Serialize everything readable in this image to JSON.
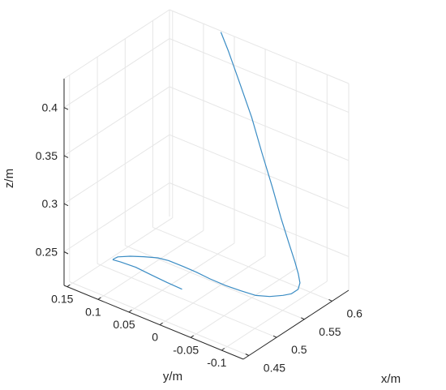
{
  "chart_data": {
    "type": "line",
    "view": "3d",
    "grid": true,
    "axes": {
      "x": {
        "label": "x/m",
        "range": [
          0.44,
          0.63
        ],
        "ticks": [
          "0.45",
          "0.5",
          "0.55",
          "0.6"
        ],
        "tick_values": [
          0.45,
          0.5,
          0.55,
          0.6
        ]
      },
      "y": {
        "label": "y/m",
        "range": [
          -0.135,
          0.155
        ],
        "ticks": [
          "0.15",
          "0.1",
          "0.05",
          "0",
          "-0.05",
          "-0.1"
        ],
        "tick_values": [
          0.15,
          0.1,
          0.05,
          0,
          -0.05,
          -0.1
        ]
      },
      "z": {
        "label": "z/m",
        "range": [
          0.215,
          0.43
        ],
        "ticks": [
          "0.25",
          "0.3",
          "0.35",
          "0.4"
        ],
        "tick_values": [
          0.25,
          0.3,
          0.35,
          0.4
        ]
      }
    },
    "series": [
      {
        "color": "#3a8cc4",
        "points": [
          {
            "x": 0.48,
            "y": 0.0,
            "z": 0.237
          },
          {
            "x": 0.481,
            "y": 0.025,
            "z": 0.237
          },
          {
            "x": 0.481,
            "y": 0.05,
            "z": 0.238
          },
          {
            "x": 0.48,
            "y": 0.075,
            "z": 0.24
          },
          {
            "x": 0.475,
            "y": 0.095,
            "z": 0.242
          },
          {
            "x": 0.467,
            "y": 0.1,
            "z": 0.246
          },
          {
            "x": 0.462,
            "y": 0.095,
            "z": 0.25
          },
          {
            "x": 0.459,
            "y": 0.085,
            "z": 0.256
          },
          {
            "x": 0.459,
            "y": 0.065,
            "z": 0.262
          },
          {
            "x": 0.461,
            "y": 0.045,
            "z": 0.266
          },
          {
            "x": 0.464,
            "y": 0.025,
            "z": 0.269
          },
          {
            "x": 0.467,
            "y": 0.01,
            "z": 0.269
          },
          {
            "x": 0.472,
            "y": -0.008,
            "z": 0.266
          },
          {
            "x": 0.478,
            "y": -0.025,
            "z": 0.262
          },
          {
            "x": 0.486,
            "y": -0.04,
            "z": 0.256
          },
          {
            "x": 0.497,
            "y": -0.055,
            "z": 0.249
          },
          {
            "x": 0.51,
            "y": -0.068,
            "z": 0.242
          },
          {
            "x": 0.524,
            "y": -0.08,
            "z": 0.235
          },
          {
            "x": 0.54,
            "y": -0.088,
            "z": 0.23
          },
          {
            "x": 0.556,
            "y": -0.095,
            "z": 0.227
          },
          {
            "x": 0.568,
            "y": -0.098,
            "z": 0.225
          },
          {
            "x": 0.58,
            "y": -0.098,
            "z": 0.225
          },
          {
            "x": 0.589,
            "y": -0.093,
            "z": 0.227
          },
          {
            "x": 0.595,
            "y": -0.085,
            "z": 0.232
          },
          {
            "x": 0.6,
            "y": -0.075,
            "z": 0.24
          },
          {
            "x": 0.605,
            "y": -0.06,
            "z": 0.255
          },
          {
            "x": 0.608,
            "y": -0.045,
            "z": 0.275
          },
          {
            "x": 0.612,
            "y": -0.028,
            "z": 0.3
          },
          {
            "x": 0.615,
            "y": -0.008,
            "z": 0.33
          },
          {
            "x": 0.619,
            "y": 0.012,
            "z": 0.36
          },
          {
            "x": 0.622,
            "y": 0.035,
            "z": 0.39
          },
          {
            "x": 0.625,
            "y": 0.055,
            "z": 0.415
          },
          {
            "x": 0.628,
            "y": 0.07,
            "z": 0.43
          }
        ]
      }
    ]
  }
}
